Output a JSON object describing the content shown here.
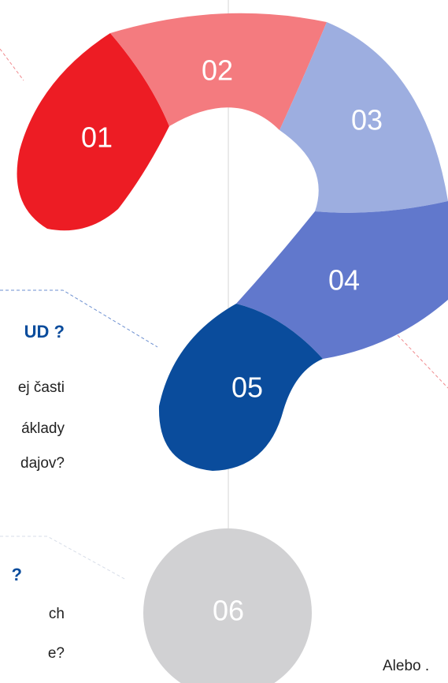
{
  "segments": [
    "01",
    "02",
    "03",
    "04",
    "05",
    "06"
  ],
  "blocks": [
    {
      "heading": "UD ?",
      "lines": [
        "ej časti",
        "áklady",
        "dajov?"
      ]
    },
    {
      "heading": "?",
      "lines": [
        "ch",
        "e?"
      ]
    }
  ],
  "side_text": "Alebo ."
}
